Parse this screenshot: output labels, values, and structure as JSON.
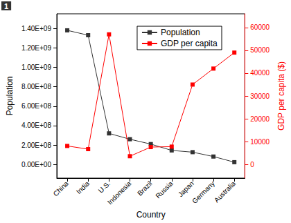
{
  "chart_data": {
    "type": "line",
    "title": "1",
    "x_label": "Country",
    "y_label": "Population",
    "y2_label": "GDP per capita ($)",
    "categories": [
      "China",
      "India",
      "U.S.",
      "Indonesia",
      "Brazil",
      "Russia",
      "Japan",
      "Germany",
      "Australia"
    ],
    "series": [
      {
        "name": "Population",
        "color": "#333333",
        "marker": "square",
        "line_style": "solid",
        "values": [
          1380000000,
          1330000000,
          320000000,
          260000000,
          210000000,
          145000000,
          127000000,
          82000000,
          24000000
        ]
      },
      {
        "name": "GDP per capita",
        "color": "#ff0000",
        "marker": "square",
        "line_style": "solid",
        "axis": "y2",
        "values": [
          8100,
          6700,
          57000,
          3600,
          7600,
          7800,
          35000,
          42000,
          49000
        ]
      }
    ],
    "ylim": [
      -140000000,
      1550000000
    ],
    "yticks": [
      {
        "value": 0,
        "label": "0.00E+00"
      },
      {
        "value": 200000000,
        "label": "2.00E+08"
      },
      {
        "value": 400000000,
        "label": "4.00E+08"
      },
      {
        "value": 600000000,
        "label": "6.00E+08"
      },
      {
        "value": 800000000,
        "label": "8.00E+08"
      },
      {
        "value": 1000000000,
        "label": "1.00E+09"
      },
      {
        "value": 1200000000,
        "label": "1.20E+09"
      },
      {
        "value": 1400000000,
        "label": "1.40E+09"
      }
    ],
    "y2lim": [
      -6000,
      66000
    ],
    "y2ticks": [
      0,
      10000,
      20000,
      30000,
      40000,
      50000,
      60000
    ],
    "grid": false,
    "legend": "upper right"
  }
}
